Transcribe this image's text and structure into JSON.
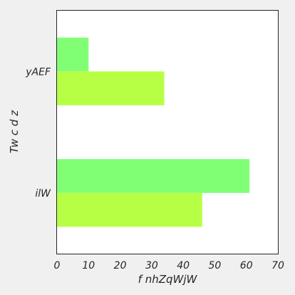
{
  "chart_data": {
    "type": "bar",
    "orientation": "horizontal",
    "categories": [
      "yAEF",
      "ilW"
    ],
    "series": [
      {
        "values": [
          10,
          61
        ],
        "color": "#80ff75"
      },
      {
        "values": [
          34,
          46
        ],
        "color": "#b6ff45"
      }
    ],
    "xlabel": "f nhZqWjW",
    "ylabel": "Tw c d z",
    "xlim": [
      0,
      70
    ],
    "xticks": [
      0,
      10,
      20,
      30,
      40,
      50,
      60,
      70
    ],
    "grid": false,
    "legend": "none"
  },
  "colors": {
    "background": "#f0f0f0",
    "plot_background": "#ffffff",
    "axis": "#262626"
  }
}
